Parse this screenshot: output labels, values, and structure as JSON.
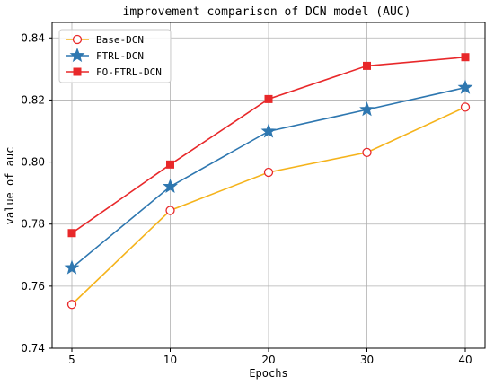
{
  "chart_data": {
    "type": "line",
    "title": "improvement comparison of DCN model (AUC)",
    "xlabel": "Epochs",
    "ylabel": "value of auc",
    "categories": [
      "5",
      "10",
      "20",
      "30",
      "40"
    ],
    "ylim": [
      0.74,
      0.845
    ],
    "yticks": [
      "0.74",
      "0.76",
      "0.78",
      "0.80",
      "0.82",
      "0.84"
    ],
    "ytick_values": [
      0.74,
      0.76,
      0.78,
      0.8,
      0.82,
      0.84
    ],
    "grid": true,
    "legend_position": "top-left",
    "series": [
      {
        "name": "Base-DCN",
        "values": [
          0.7541,
          0.7844,
          0.7967,
          0.8031,
          0.8177
        ],
        "color": "#f5b31b",
        "marker": "open-circle",
        "marker_color": "#e8282a"
      },
      {
        "name": "FTRL-DCN",
        "values": [
          0.7659,
          0.7921,
          0.8099,
          0.8169,
          0.824
        ],
        "color": "#2e77b0",
        "marker": "star",
        "marker_color": "#2e77b0"
      },
      {
        "name": "FO-FTRL-DCN",
        "values": [
          0.7771,
          0.7992,
          0.8203,
          0.831,
          0.8338
        ],
        "color": "#e8282a",
        "marker": "square",
        "marker_color": "#e8282a"
      }
    ]
  }
}
